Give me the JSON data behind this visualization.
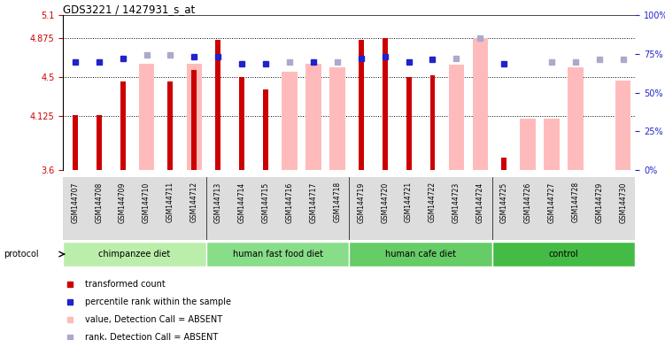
{
  "title": "GDS3221 / 1427931_s_at",
  "samples": [
    "GSM144707",
    "GSM144708",
    "GSM144709",
    "GSM144710",
    "GSM144711",
    "GSM144712",
    "GSM144713",
    "GSM144714",
    "GSM144715",
    "GSM144716",
    "GSM144717",
    "GSM144718",
    "GSM144719",
    "GSM144720",
    "GSM144721",
    "GSM144722",
    "GSM144723",
    "GSM144724",
    "GSM144725",
    "GSM144726",
    "GSM144727",
    "GSM144728",
    "GSM144729",
    "GSM144730"
  ],
  "red_values": [
    4.135,
    4.135,
    4.46,
    null,
    4.46,
    4.57,
    4.865,
    4.5,
    4.38,
    null,
    null,
    null,
    4.865,
    4.875,
    4.5,
    4.52,
    null,
    null,
    3.72,
    null,
    null,
    null,
    null,
    null
  ],
  "pink_values": [
    null,
    null,
    null,
    4.63,
    null,
    4.63,
    null,
    null,
    null,
    4.55,
    4.63,
    4.6,
    null,
    null,
    null,
    null,
    4.62,
    4.875,
    null,
    4.1,
    4.1,
    4.6,
    null,
    4.47
  ],
  "blue_values": [
    4.65,
    4.65,
    4.68,
    null,
    null,
    4.7,
    4.7,
    4.63,
    4.63,
    null,
    4.65,
    null,
    4.68,
    4.7,
    4.65,
    4.67,
    null,
    null,
    4.63,
    null,
    null,
    null,
    null,
    null
  ],
  "lightblue_values": [
    null,
    null,
    null,
    4.72,
    4.72,
    null,
    null,
    null,
    null,
    4.65,
    null,
    4.65,
    null,
    null,
    null,
    null,
    4.68,
    4.875,
    null,
    null,
    4.65,
    4.65,
    4.67,
    4.67
  ],
  "group_labels": [
    "chimpanzee diet",
    "human fast food diet",
    "human cafe diet",
    "control"
  ],
  "group_starts": [
    0,
    6,
    12,
    18
  ],
  "group_ends": [
    5,
    11,
    17,
    23
  ],
  "group_colors": [
    "#bbeeaa",
    "#88dd88",
    "#66cc66",
    "#44bb44"
  ],
  "ylim": [
    3.6,
    5.1
  ],
  "yticks_left": [
    3.6,
    4.125,
    4.5,
    4.875,
    5.1
  ],
  "yticks_left_labels": [
    "3.6",
    "4.125",
    "4.5",
    "4.875",
    "5.1"
  ],
  "yticks_right": [
    0,
    25,
    50,
    75,
    100
  ],
  "hlines": [
    4.125,
    4.5,
    4.875
  ],
  "red_color": "#cc0000",
  "pink_color": "#ffbbbb",
  "blue_color": "#2222cc",
  "lightblue_color": "#aaaacc",
  "bg_color": "#ffffff",
  "xtick_bg": "#dddddd",
  "legend_items": [
    {
      "color": "#cc0000",
      "label": "transformed count"
    },
    {
      "color": "#2222cc",
      "label": "percentile rank within the sample"
    },
    {
      "color": "#ffbbbb",
      "label": "value, Detection Call = ABSENT"
    },
    {
      "color": "#aaaacc",
      "label": "rank, Detection Call = ABSENT"
    }
  ]
}
